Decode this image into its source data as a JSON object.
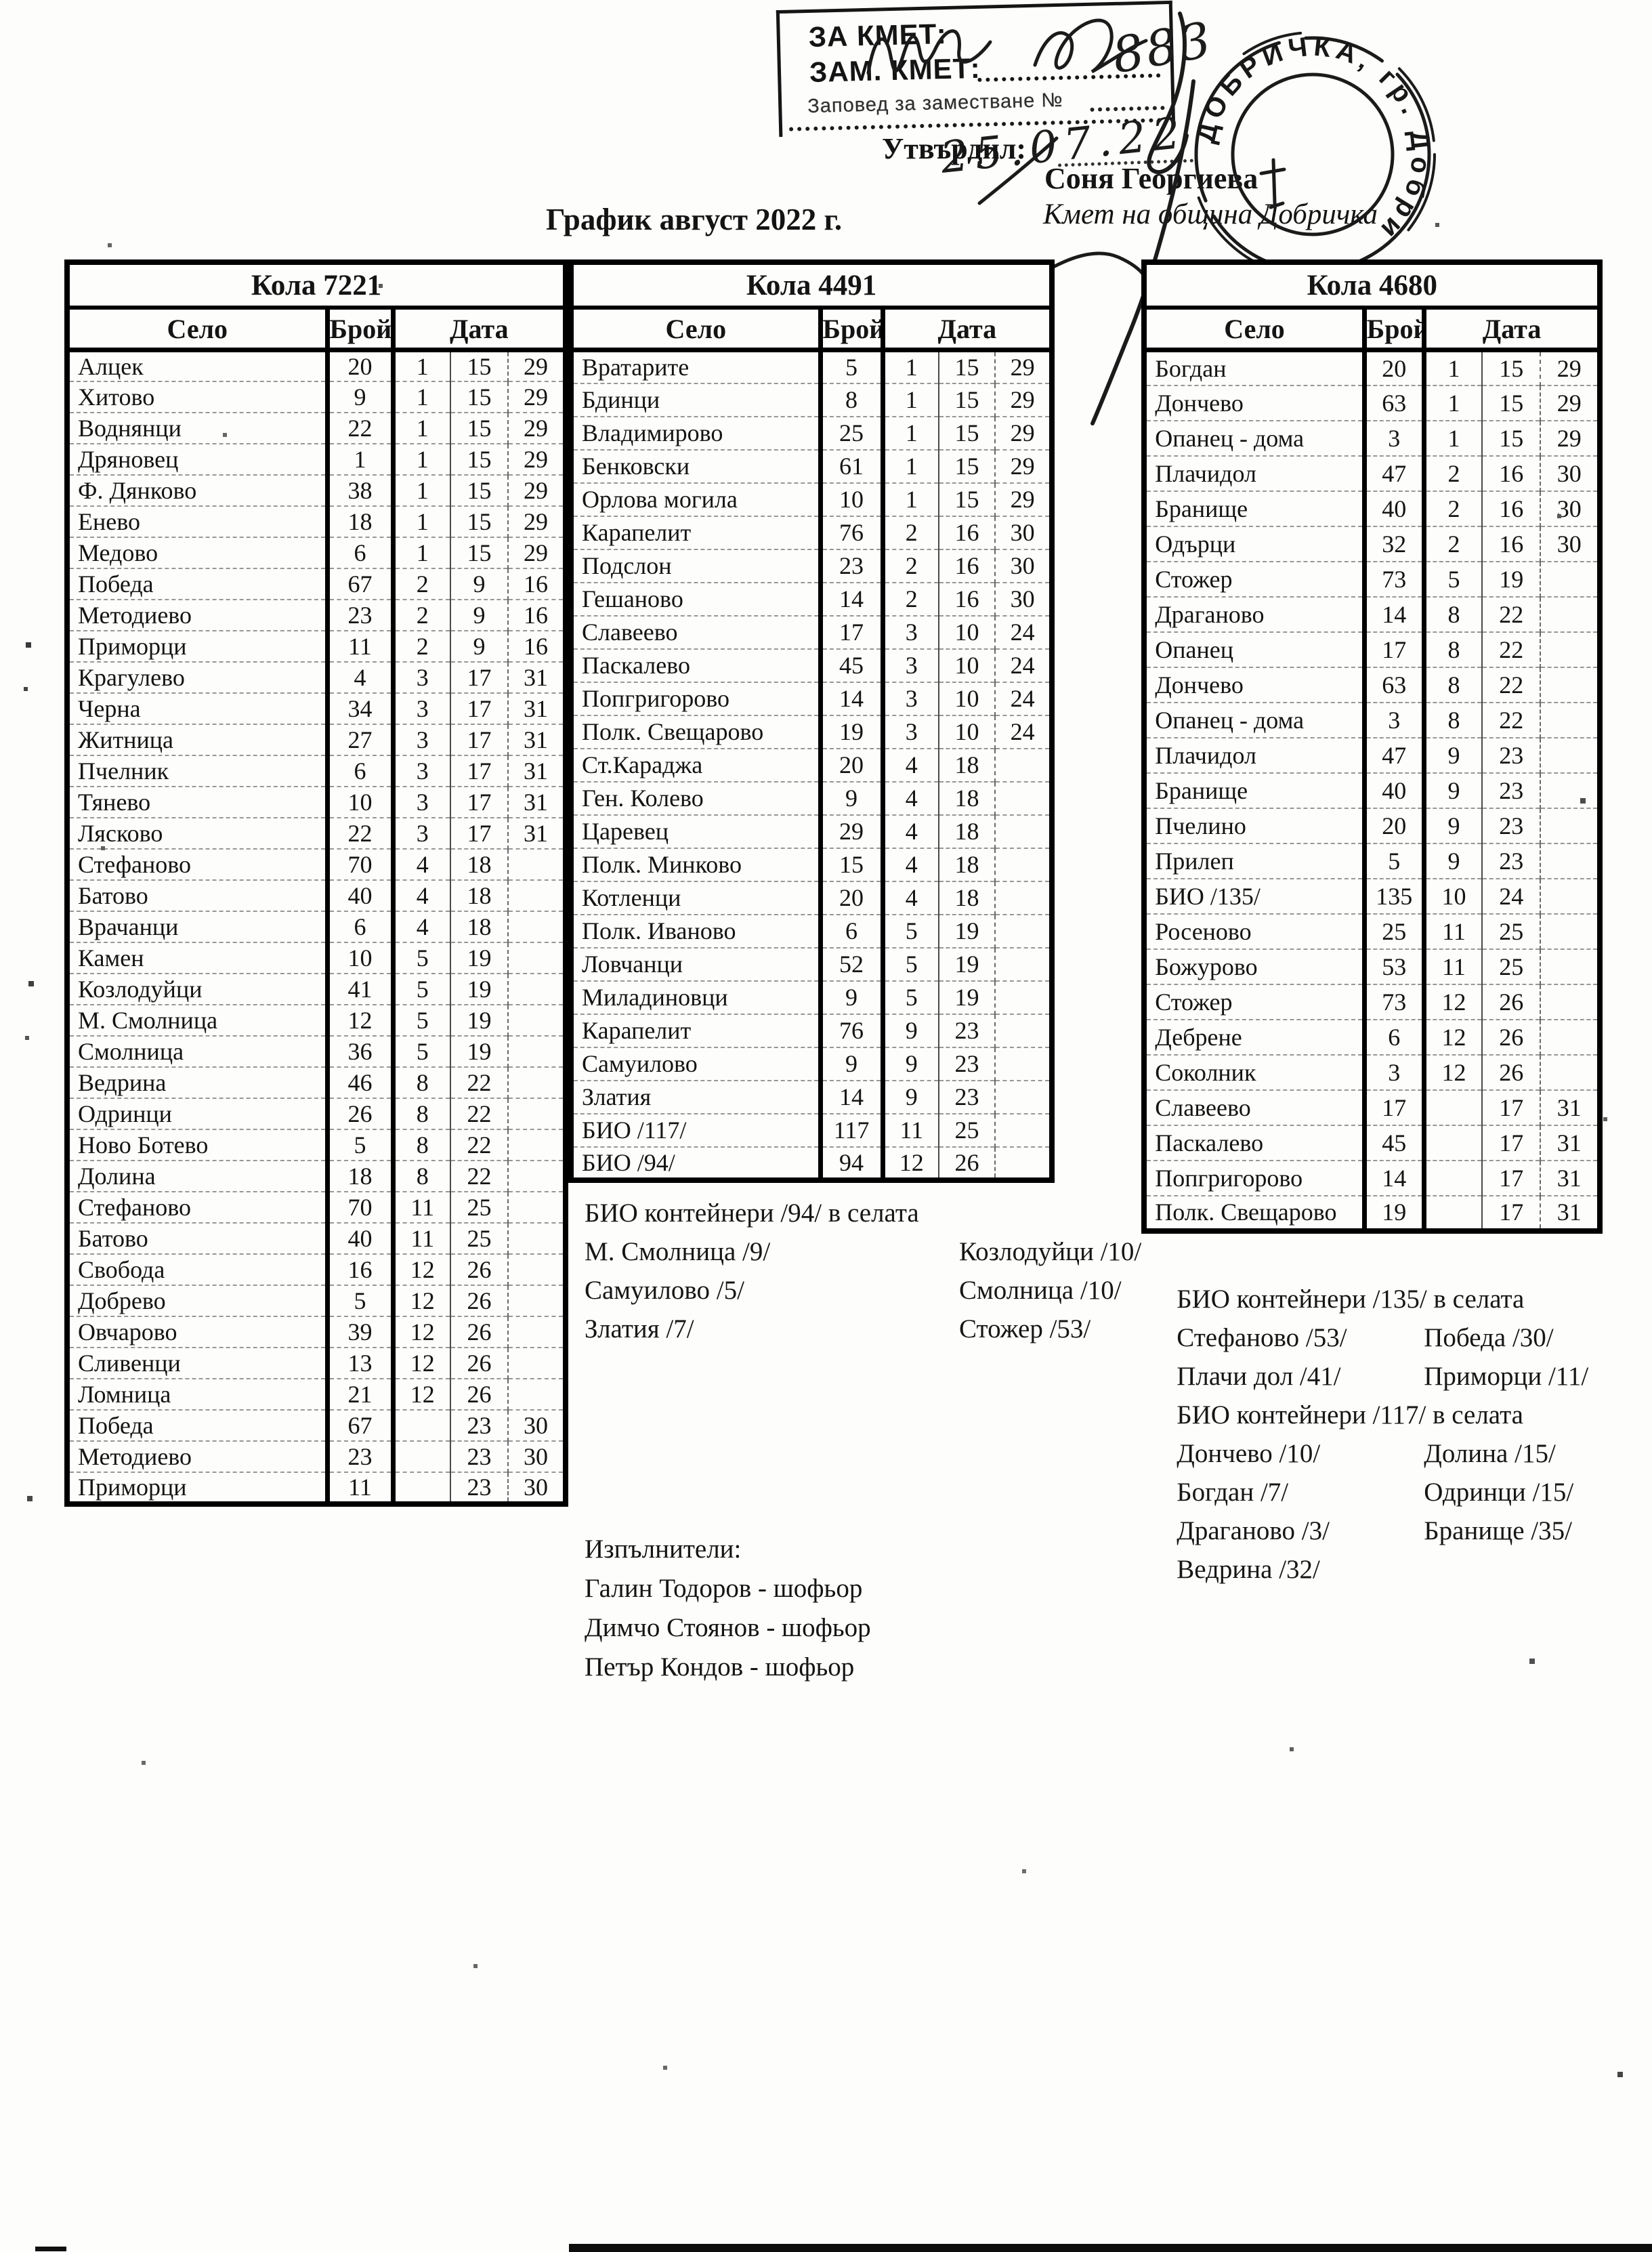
{
  "page": {
    "title": "График август 2022 г.",
    "stamp_box": {
      "line1": "ЗА КМЕТ:",
      "line2": "ЗАМ. КМЕТ:",
      "line3": "Заповед за заместване №",
      "handwritten_order_no": "883",
      "handwritten_date": "25.07.22"
    },
    "approved_label": "Утвърдил:",
    "approver_name": "Соня Георгиева",
    "approver_title": "Кмет  на община Добричка",
    "round_stamp_text": "ДОБРИЧКА, гр. Добрич"
  },
  "columns": {
    "village": "Село",
    "count": "Брой",
    "date": "Дата"
  },
  "tables": [
    {
      "title": "Кола 7221",
      "rows": [
        [
          "Алцек",
          "20",
          "1",
          "15",
          "29"
        ],
        [
          "Хитово",
          "9",
          "1",
          "15",
          "29"
        ],
        [
          "Воднянци",
          "22",
          "1",
          "15",
          "29"
        ],
        [
          "Дряновец",
          "1",
          "1",
          "15",
          "29"
        ],
        [
          "Ф. Дянково",
          "38",
          "1",
          "15",
          "29"
        ],
        [
          "Енево",
          "18",
          "1",
          "15",
          "29"
        ],
        [
          "Медово",
          "6",
          "1",
          "15",
          "29"
        ],
        [
          "Победа",
          "67",
          "2",
          "9",
          "16"
        ],
        [
          "Методиево",
          "23",
          "2",
          "9",
          "16"
        ],
        [
          "Приморци",
          "11",
          "2",
          "9",
          "16"
        ],
        [
          "Крагулево",
          "4",
          "3",
          "17",
          "31"
        ],
        [
          "Черна",
          "34",
          "3",
          "17",
          "31"
        ],
        [
          "Житница",
          "27",
          "3",
          "17",
          "31"
        ],
        [
          "Пчелник",
          "6",
          "3",
          "17",
          "31"
        ],
        [
          "Тянево",
          "10",
          "3",
          "17",
          "31"
        ],
        [
          "Лясково",
          "22",
          "3",
          "17",
          "31"
        ],
        [
          "Стефаново",
          "70",
          "4",
          "18",
          ""
        ],
        [
          "Батово",
          "40",
          "4",
          "18",
          ""
        ],
        [
          "Врачанци",
          "6",
          "4",
          "18",
          ""
        ],
        [
          "Камен",
          "10",
          "5",
          "19",
          ""
        ],
        [
          "Козлодуйци",
          "41",
          "5",
          "19",
          ""
        ],
        [
          "М. Смолница",
          "12",
          "5",
          "19",
          ""
        ],
        [
          "Смолница",
          "36",
          "5",
          "19",
          ""
        ],
        [
          "Ведрина",
          "46",
          "8",
          "22",
          ""
        ],
        [
          "Одринци",
          "26",
          "8",
          "22",
          ""
        ],
        [
          "Ново Ботево",
          "5",
          "8",
          "22",
          ""
        ],
        [
          "Долина",
          "18",
          "8",
          "22",
          ""
        ],
        [
          "Стефаново",
          "70",
          "11",
          "25",
          ""
        ],
        [
          "Батово",
          "40",
          "11",
          "25",
          ""
        ],
        [
          "Свобода",
          "16",
          "12",
          "26",
          ""
        ],
        [
          "Добрево",
          "5",
          "12",
          "26",
          ""
        ],
        [
          "Овчарово",
          "39",
          "12",
          "26",
          ""
        ],
        [
          "Сливенци",
          "13",
          "12",
          "26",
          ""
        ],
        [
          "Ломница",
          "21",
          "12",
          "26",
          ""
        ],
        [
          "Победа",
          "67",
          "",
          "23",
          "30"
        ],
        [
          "Методиево",
          "23",
          "",
          "23",
          "30"
        ],
        [
          "Приморци",
          "11",
          "",
          "23",
          "30"
        ]
      ]
    },
    {
      "title": "Кола 4491",
      "rows": [
        [
          "Вратарите",
          "5",
          "1",
          "15",
          "29"
        ],
        [
          "Бдинци",
          "8",
          "1",
          "15",
          "29"
        ],
        [
          "Владимирово",
          "25",
          "1",
          "15",
          "29"
        ],
        [
          "Бенковски",
          "61",
          "1",
          "15",
          "29"
        ],
        [
          "Орлова могила",
          "10",
          "1",
          "15",
          "29"
        ],
        [
          "Карапелит",
          "76",
          "2",
          "16",
          "30"
        ],
        [
          "Подслон",
          "23",
          "2",
          "16",
          "30"
        ],
        [
          "Гешаново",
          "14",
          "2",
          "16",
          "30"
        ],
        [
          "Славеево",
          "17",
          "3",
          "10",
          "24"
        ],
        [
          "Паскалево",
          "45",
          "3",
          "10",
          "24"
        ],
        [
          "Попгригорово",
          "14",
          "3",
          "10",
          "24"
        ],
        [
          "Полк. Свещарово",
          "19",
          "3",
          "10",
          "24"
        ],
        [
          "Ст.Караджа",
          "20",
          "4",
          "18",
          ""
        ],
        [
          "Ген. Колево",
          "9",
          "4",
          "18",
          ""
        ],
        [
          "Царевец",
          "29",
          "4",
          "18",
          ""
        ],
        [
          "Полк. Минково",
          "15",
          "4",
          "18",
          ""
        ],
        [
          "Котленци",
          "20",
          "4",
          "18",
          ""
        ],
        [
          "Полк. Иваново",
          "6",
          "5",
          "19",
          ""
        ],
        [
          "Ловчанци",
          "52",
          "5",
          "19",
          ""
        ],
        [
          "Миладиновци",
          "9",
          "5",
          "19",
          ""
        ],
        [
          "Карапелит",
          "76",
          "9",
          "23",
          ""
        ],
        [
          "Самуилово",
          "9",
          "9",
          "23",
          ""
        ],
        [
          "Златия",
          "14",
          "9",
          "23",
          ""
        ],
        [
          "БИО /117/",
          "117",
          "11",
          "25",
          ""
        ],
        [
          "БИО /94/",
          "94",
          "12",
          "26",
          ""
        ]
      ]
    },
    {
      "title": "Кола 4680",
      "rows": [
        [
          "Богдан",
          "20",
          "1",
          "15",
          "29"
        ],
        [
          "Дончево",
          "63",
          "1",
          "15",
          "29"
        ],
        [
          "Опанец - дома",
          "3",
          "1",
          "15",
          "29"
        ],
        [
          "Плачидол",
          "47",
          "2",
          "16",
          "30"
        ],
        [
          "Бранище",
          "40",
          "2",
          "16",
          "30"
        ],
        [
          "Одърци",
          "32",
          "2",
          "16",
          "30"
        ],
        [
          "Стожер",
          "73",
          "5",
          "19",
          ""
        ],
        [
          "Драганово",
          "14",
          "8",
          "22",
          ""
        ],
        [
          "Опанец",
          "17",
          "8",
          "22",
          ""
        ],
        [
          "Дончево",
          "63",
          "8",
          "22",
          ""
        ],
        [
          "Опанец - дома",
          "3",
          "8",
          "22",
          ""
        ],
        [
          "Плачидол",
          "47",
          "9",
          "23",
          ""
        ],
        [
          "Бранище",
          "40",
          "9",
          "23",
          ""
        ],
        [
          "Пчелино",
          "20",
          "9",
          "23",
          ""
        ],
        [
          "Прилеп",
          "5",
          "9",
          "23",
          ""
        ],
        [
          "БИО /135/",
          "135",
          "10",
          "24",
          ""
        ],
        [
          "Росеново",
          "25",
          "11",
          "25",
          ""
        ],
        [
          "Божурово",
          "53",
          "11",
          "25",
          ""
        ],
        [
          "Стожер",
          "73",
          "12",
          "26",
          ""
        ],
        [
          "Дебрене",
          "6",
          "12",
          "26",
          ""
        ],
        [
          "Соколник",
          "3",
          "12",
          "26",
          ""
        ],
        [
          "Славеево",
          "17",
          "",
          "17",
          "31"
        ],
        [
          "Паскалево",
          "45",
          "",
          "17",
          "31"
        ],
        [
          "Попгригорово",
          "14",
          "",
          "17",
          "31"
        ],
        [
          "Полк. Свещарово",
          "19",
          "",
          "17",
          "31"
        ]
      ]
    }
  ],
  "notes_col2": {
    "heading": "БИО контейнери /94/ в селата",
    "pairs": [
      [
        "М. Смолница /9/",
        "Козлодуйци /10/"
      ],
      [
        "Самуилово /5/",
        "Смолница /10/"
      ],
      [
        "Златия /7/",
        "Стожер /53/"
      ]
    ]
  },
  "executors": {
    "heading": "Изпълнители:",
    "items": [
      "Галин Тодоров - шофьор",
      "Димчо Стоянов - шофьор",
      "Петър Кондов - шофьор"
    ]
  },
  "notes_col3": {
    "blocks": [
      {
        "heading": "БИО контейнери /135/ в селата",
        "pairs": [
          [
            "Стефаново /53/",
            "Победа /30/"
          ],
          [
            "Плачи дол /41/",
            "Приморци /11/"
          ]
        ]
      },
      {
        "heading": "БИО контейнери /117/ в селата",
        "pairs": [
          [
            "Дончево /10/",
            "Долина /15/"
          ],
          [
            "Богдан /7/",
            "Одринци /15/"
          ],
          [
            "Драганово /3/",
            "Бранище /35/"
          ],
          [
            "Ведрина /32/",
            ""
          ]
        ]
      }
    ]
  }
}
